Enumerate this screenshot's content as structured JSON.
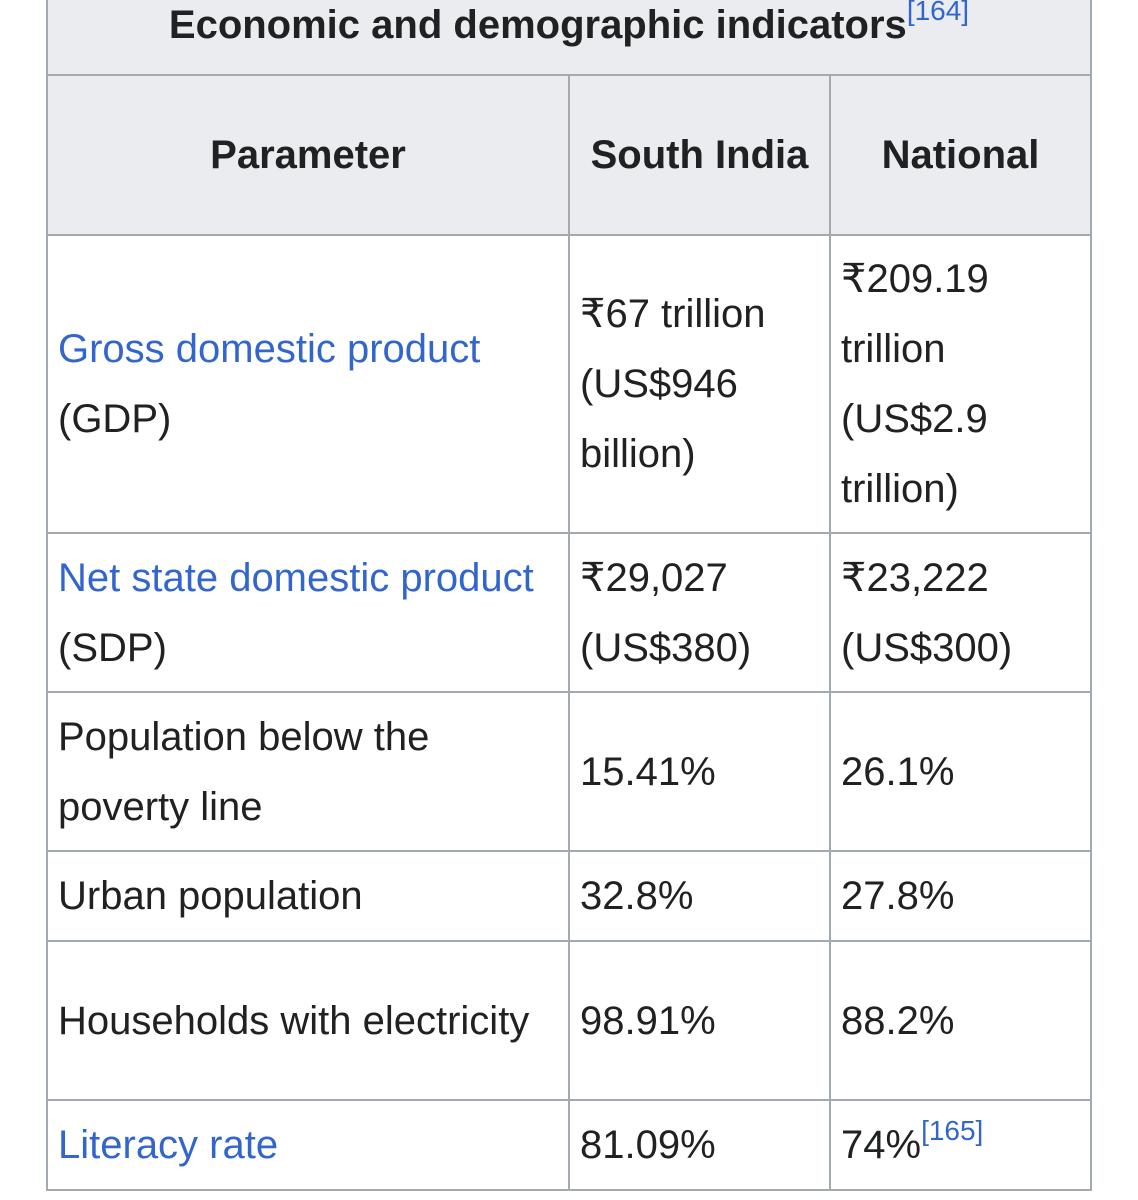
{
  "caption": {
    "title": "Economic and demographic indicators",
    "ref": "[164]"
  },
  "headers": {
    "parameter": "Parameter",
    "south_india": "South India",
    "national": "National"
  },
  "rows": {
    "gdp": {
      "link": "Gross domestic product",
      "suffix": "(GDP)",
      "south_india": "₹67 trillion (US$946 billion)",
      "national": "₹209.19 trillion (US$2.9 trillion)"
    },
    "sdp": {
      "link": "Net state domestic product",
      "suffix": " (SDP)",
      "south_india": "₹29,027 (US$380)",
      "national": "₹23,222 (US$300)"
    },
    "poverty": {
      "label": "Population below the poverty line",
      "south_india": "15.41%",
      "national": "26.1%"
    },
    "urban": {
      "label": "Urban population",
      "south_india": "32.8%",
      "national": "27.8%"
    },
    "electricity": {
      "label": "Households with electricity",
      "south_india": "98.91%",
      "national": "88.2%"
    },
    "literacy": {
      "link": "Literacy rate",
      "south_india": "81.09%",
      "national": "74%",
      "national_ref": "[165]"
    }
  },
  "colors": {
    "link": "#3366cc",
    "header_bg": "#eaecf0",
    "border": "#a2a9b1",
    "text": "#202122"
  }
}
